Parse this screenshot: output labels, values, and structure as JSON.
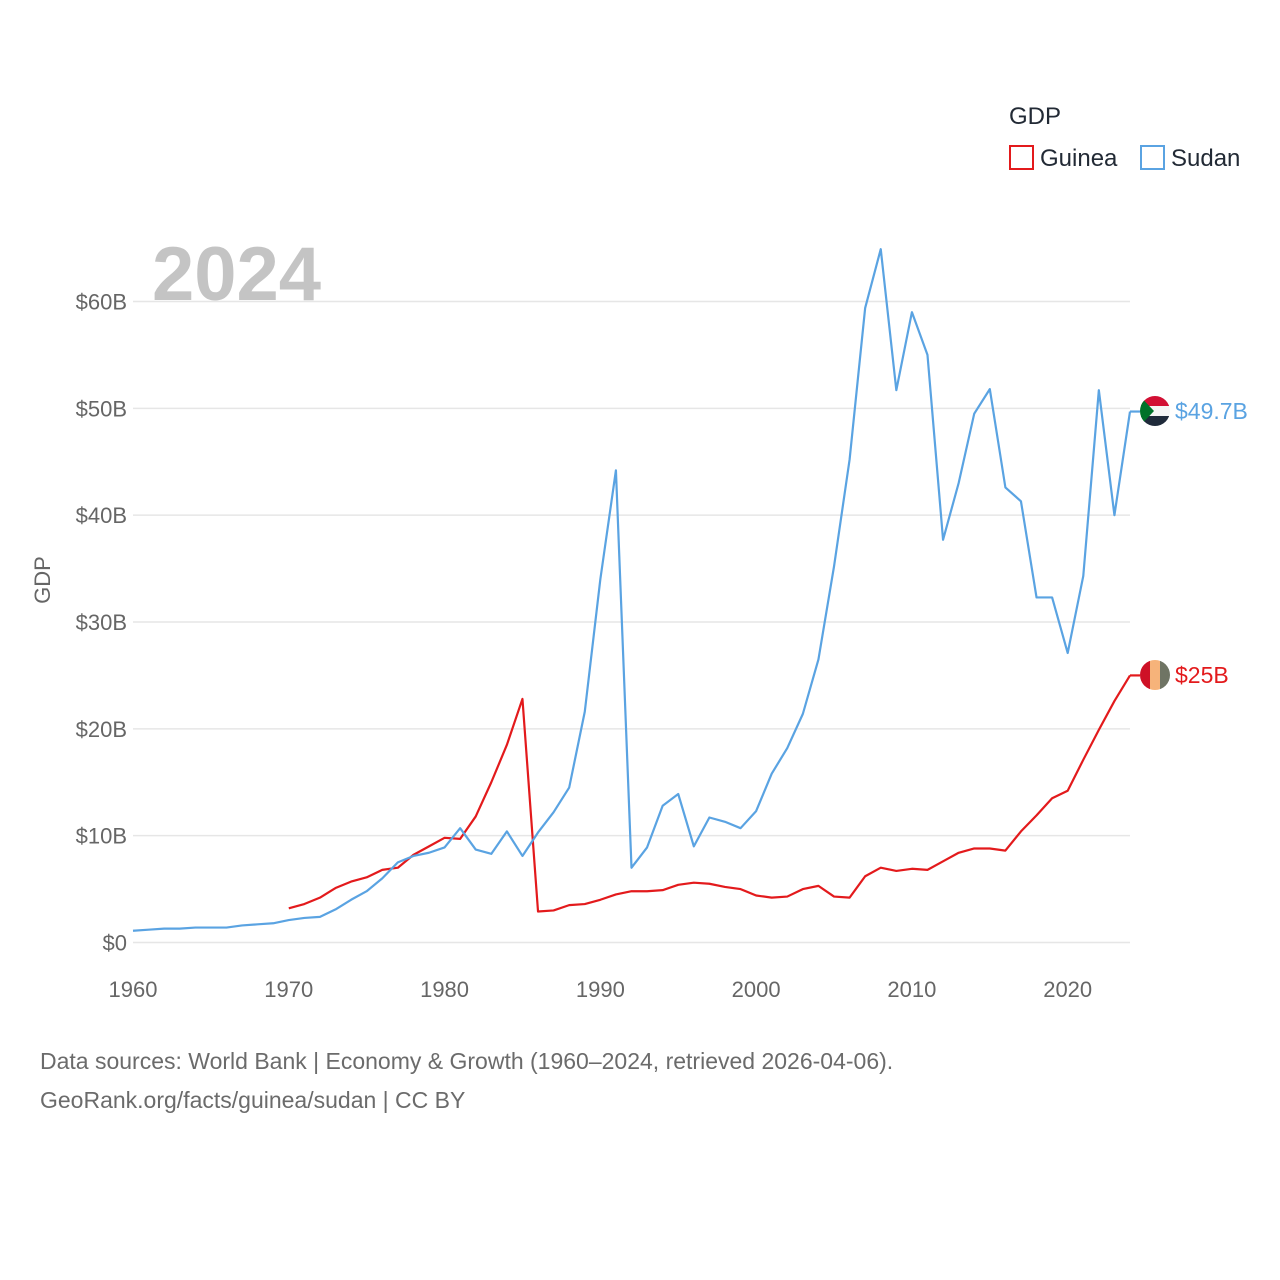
{
  "chart_data": {
    "type": "line",
    "year_label": "2024",
    "ylabel": "GDP",
    "xlim": [
      1960,
      2024
    ],
    "ylim": [
      0,
      60
    ],
    "x_ticks": [
      1960,
      1970,
      1980,
      1990,
      2000,
      2010,
      2020
    ],
    "x_tick_labels": [
      "1960",
      "1970",
      "1980",
      "1990",
      "2000",
      "2010",
      "2020"
    ],
    "y_ticks": [
      0,
      10,
      20,
      30,
      40,
      50,
      60
    ],
    "y_tick_labels": [
      "$0",
      "$10B",
      "$20B",
      "$30B",
      "$40B",
      "$50B",
      "$60B"
    ],
    "legend": {
      "title": "GDP",
      "position": "top-right"
    },
    "series": [
      {
        "name": "Guinea",
        "color": "#e31a1c",
        "end_label": "$25B",
        "end_value": 25.0,
        "x": [
          1970,
          1971,
          1972,
          1973,
          1974,
          1975,
          1976,
          1977,
          1978,
          1979,
          1980,
          1981,
          1982,
          1983,
          1984,
          1985,
          1986,
          1987,
          1988,
          1989,
          1990,
          1991,
          1992,
          1993,
          1994,
          1995,
          1996,
          1997,
          1998,
          1999,
          2000,
          2001,
          2002,
          2003,
          2004,
          2005,
          2006,
          2007,
          2008,
          2009,
          2010,
          2011,
          2012,
          2013,
          2014,
          2015,
          2016,
          2017,
          2018,
          2019,
          2020,
          2021,
          2022,
          2023,
          2024
        ],
        "values": [
          3.2,
          3.6,
          4.2,
          5.1,
          5.7,
          6.1,
          6.8,
          7.0,
          8.2,
          9.0,
          9.8,
          9.7,
          11.8,
          15.0,
          18.5,
          22.8,
          2.9,
          3.0,
          3.5,
          3.6,
          4.0,
          4.5,
          4.8,
          4.8,
          4.9,
          5.4,
          5.6,
          5.5,
          5.2,
          5.0,
          4.4,
          4.2,
          4.3,
          5.0,
          5.3,
          4.3,
          4.2,
          6.2,
          7.0,
          6.7,
          6.9,
          6.8,
          7.6,
          8.4,
          8.8,
          8.8,
          8.6,
          10.4,
          11.9,
          13.5,
          14.2,
          17.1,
          19.9,
          22.6,
          25.0
        ]
      },
      {
        "name": "Sudan",
        "color": "#5aa3e2",
        "end_label": "$49.7B",
        "end_value": 49.7,
        "x": [
          1960,
          1961,
          1962,
          1963,
          1964,
          1965,
          1966,
          1967,
          1968,
          1969,
          1970,
          1971,
          1972,
          1973,
          1974,
          1975,
          1976,
          1977,
          1978,
          1979,
          1980,
          1981,
          1982,
          1983,
          1984,
          1985,
          1986,
          1987,
          1988,
          1989,
          1990,
          1991,
          1992,
          1993,
          1994,
          1995,
          1996,
          1997,
          1998,
          1999,
          2000,
          2001,
          2002,
          2003,
          2004,
          2005,
          2006,
          2007,
          2008,
          2009,
          2010,
          2011,
          2012,
          2013,
          2014,
          2015,
          2016,
          2017,
          2018,
          2019,
          2020,
          2021,
          2022,
          2023,
          2024
        ],
        "values": [
          1.1,
          1.2,
          1.3,
          1.3,
          1.4,
          1.4,
          1.4,
          1.6,
          1.7,
          1.8,
          2.1,
          2.3,
          2.4,
          3.1,
          4.0,
          4.8,
          6.0,
          7.5,
          8.1,
          8.4,
          8.9,
          10.7,
          8.7,
          8.3,
          10.4,
          8.1,
          10.3,
          12.2,
          14.5,
          21.6,
          34.0,
          44.2,
          7.0,
          8.9,
          12.8,
          13.9,
          9.0,
          11.7,
          11.3,
          10.7,
          12.3,
          15.8,
          18.2,
          21.4,
          26.5,
          35.2,
          45.2,
          59.4,
          64.9,
          51.7,
          59.0,
          55.0,
          37.7,
          43.0,
          49.5,
          51.8,
          42.6,
          41.3,
          32.3,
          32.3,
          27.1,
          34.3,
          51.7,
          40.0,
          49.7
        ]
      }
    ]
  },
  "source": {
    "line1": "Data sources: World Bank | Economy & Growth (1960–2024, retrieved 2026-04-06).",
    "line2": "GeoRank.org/facts/guinea/sudan | CC BY"
  }
}
